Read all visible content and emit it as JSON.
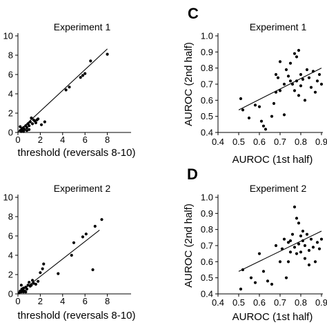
{
  "chart_data": [
    {
      "type": "scatter",
      "panel": "",
      "title": "Experiment 1",
      "xlabel": "threshold (reversals 8-10)",
      "ylabel": "",
      "xlim": [
        0,
        10
      ],
      "ylim": [
        0,
        10
      ],
      "xticks": [
        "0",
        "2",
        "4",
        "6",
        "8"
      ],
      "yticks": [
        "0",
        "2",
        "4",
        "6",
        "8",
        "10"
      ],
      "fit_line": {
        "x": [
          0.0,
          8.0
        ],
        "y": [
          0.05,
          8.65
        ]
      },
      "points": [
        {
          "x": 0.2,
          "y": 0.2
        },
        {
          "x": 0.3,
          "y": 0.1
        },
        {
          "x": 0.35,
          "y": 0.4
        },
        {
          "x": 0.4,
          "y": 0.2
        },
        {
          "x": 0.5,
          "y": 0.5
        },
        {
          "x": 0.6,
          "y": 0.3
        },
        {
          "x": 0.7,
          "y": 0.7
        },
        {
          "x": 0.8,
          "y": 0.5
        },
        {
          "x": 0.9,
          "y": 0.9
        },
        {
          "x": 1.0,
          "y": 0.7
        },
        {
          "x": 1.1,
          "y": 1.1
        },
        {
          "x": 1.2,
          "y": 1.5
        },
        {
          "x": 1.3,
          "y": 0.9
        },
        {
          "x": 1.4,
          "y": 1.3
        },
        {
          "x": 1.5,
          "y": 1.2
        },
        {
          "x": 1.6,
          "y": 1.0
        },
        {
          "x": 1.7,
          "y": 1.3
        },
        {
          "x": 1.8,
          "y": 1.4
        },
        {
          "x": 2.1,
          "y": 0.8
        },
        {
          "x": 2.4,
          "y": 1.1
        },
        {
          "x": 0.5,
          "y": 0.1
        },
        {
          "x": 0.8,
          "y": 0.2
        },
        {
          "x": 1.0,
          "y": 0.3
        },
        {
          "x": 0.2,
          "y": 0.6
        },
        {
          "x": 4.3,
          "y": 4.4
        },
        {
          "x": 4.6,
          "y": 4.7
        },
        {
          "x": 5.6,
          "y": 5.7
        },
        {
          "x": 5.8,
          "y": 5.9
        },
        {
          "x": 6.0,
          "y": 6.1
        },
        {
          "x": 6.5,
          "y": 7.4
        },
        {
          "x": 8.0,
          "y": 8.1
        }
      ]
    },
    {
      "type": "scatter",
      "panel": "C",
      "title": "Experiment 1",
      "xlabel": "AUROC (1st half)",
      "ylabel": "AUROC (2nd half)",
      "xlim": [
        0.4,
        0.9
      ],
      "ylim": [
        0.4,
        1.0
      ],
      "xticks": [
        "0.4",
        "0.5",
        "0.6",
        "0.7",
        "0.8",
        "0.9"
      ],
      "yticks": [
        "0.4",
        "0.5",
        "0.6",
        "0.7",
        "0.8",
        "0.9",
        "1.0"
      ],
      "fit_line": {
        "x": [
          0.5,
          0.9
        ],
        "y": [
          0.54,
          0.8
        ]
      },
      "points": [
        {
          "x": 0.51,
          "y": 0.61
        },
        {
          "x": 0.52,
          "y": 0.54
        },
        {
          "x": 0.55,
          "y": 0.49
        },
        {
          "x": 0.58,
          "y": 0.57
        },
        {
          "x": 0.6,
          "y": 0.56
        },
        {
          "x": 0.61,
          "y": 0.47
        },
        {
          "x": 0.62,
          "y": 0.44
        },
        {
          "x": 0.63,
          "y": 0.42
        },
        {
          "x": 0.66,
          "y": 0.5
        },
        {
          "x": 0.67,
          "y": 0.58
        },
        {
          "x": 0.68,
          "y": 0.65
        },
        {
          "x": 0.69,
          "y": 0.74
        },
        {
          "x": 0.7,
          "y": 0.66
        },
        {
          "x": 0.7,
          "y": 0.84
        },
        {
          "x": 0.72,
          "y": 0.51
        },
        {
          "x": 0.73,
          "y": 0.79
        },
        {
          "x": 0.74,
          "y": 0.75
        },
        {
          "x": 0.75,
          "y": 0.83
        },
        {
          "x": 0.76,
          "y": 0.7
        },
        {
          "x": 0.77,
          "y": 0.89
        },
        {
          "x": 0.77,
          "y": 0.66
        },
        {
          "x": 0.78,
          "y": 0.87
        },
        {
          "x": 0.78,
          "y": 0.72
        },
        {
          "x": 0.79,
          "y": 0.91
        },
        {
          "x": 0.79,
          "y": 0.63
        },
        {
          "x": 0.8,
          "y": 0.76
        },
        {
          "x": 0.8,
          "y": 0.69
        },
        {
          "x": 0.81,
          "y": 0.73
        },
        {
          "x": 0.82,
          "y": 0.6
        },
        {
          "x": 0.83,
          "y": 0.79
        },
        {
          "x": 0.84,
          "y": 0.74
        },
        {
          "x": 0.85,
          "y": 0.68
        },
        {
          "x": 0.86,
          "y": 0.78
        },
        {
          "x": 0.87,
          "y": 0.65
        },
        {
          "x": 0.88,
          "y": 0.72
        },
        {
          "x": 0.89,
          "y": 0.76
        },
        {
          "x": 0.9,
          "y": 0.7
        },
        {
          "x": 0.75,
          "y": 0.72
        },
        {
          "x": 0.72,
          "y": 0.7
        },
        {
          "x": 0.68,
          "y": 0.76
        }
      ]
    },
    {
      "type": "scatter",
      "panel": "",
      "title": "Experiment 2",
      "xlabel": "threshold (reversals 8-10)",
      "ylabel": "",
      "xlim": [
        0,
        10
      ],
      "ylim": [
        0,
        10
      ],
      "xticks": [
        "0",
        "2",
        "4",
        "6",
        "8"
      ],
      "yticks": [
        "0",
        "2",
        "4",
        "6",
        "8",
        "10"
      ],
      "fit_line": {
        "x": [
          0.0,
          7.3
        ],
        "y": [
          0.0,
          6.6
        ]
      },
      "points": [
        {
          "x": 0.1,
          "y": 0.1
        },
        {
          "x": 0.2,
          "y": 0.3
        },
        {
          "x": 0.3,
          "y": 0.2
        },
        {
          "x": 0.35,
          "y": 0.5
        },
        {
          "x": 0.4,
          "y": 0.4
        },
        {
          "x": 0.5,
          "y": 0.6
        },
        {
          "x": 0.6,
          "y": 0.3
        },
        {
          "x": 0.7,
          "y": 0.7
        },
        {
          "x": 0.8,
          "y": 0.5
        },
        {
          "x": 0.9,
          "y": 0.9
        },
        {
          "x": 1.0,
          "y": 1.2
        },
        {
          "x": 1.1,
          "y": 0.8
        },
        {
          "x": 1.2,
          "y": 0.9
        },
        {
          "x": 1.3,
          "y": 1.4
        },
        {
          "x": 1.4,
          "y": 1.1
        },
        {
          "x": 1.6,
          "y": 1.0
        },
        {
          "x": 1.8,
          "y": 1.3
        },
        {
          "x": 2.0,
          "y": 2.2
        },
        {
          "x": 2.2,
          "y": 2.6
        },
        {
          "x": 2.3,
          "y": 3.1
        },
        {
          "x": 3.6,
          "y": 2.1
        },
        {
          "x": 0.5,
          "y": 0.2
        },
        {
          "x": 0.3,
          "y": 0.9
        },
        {
          "x": 0.7,
          "y": 0.2
        },
        {
          "x": 4.8,
          "y": 4.0
        },
        {
          "x": 5.0,
          "y": 5.3
        },
        {
          "x": 5.8,
          "y": 5.9
        },
        {
          "x": 6.1,
          "y": 6.2
        },
        {
          "x": 6.7,
          "y": 2.5
        },
        {
          "x": 6.9,
          "y": 7.0
        },
        {
          "x": 7.5,
          "y": 7.7
        }
      ]
    },
    {
      "type": "scatter",
      "panel": "D",
      "title": "Experiment 2",
      "xlabel": "AUROC (1st half)",
      "ylabel": "AUROC (2nd half)",
      "xlim": [
        0.4,
        0.9
      ],
      "ylim": [
        0.4,
        1.0
      ],
      "xticks": [
        "0.4",
        "0.5",
        "0.6",
        "0.7",
        "0.8",
        "0.9"
      ],
      "yticks": [
        "0.4",
        "0.5",
        "0.6",
        "0.7",
        "0.8",
        "0.9",
        "1.0"
      ],
      "fit_line": {
        "x": [
          0.5,
          0.9
        ],
        "y": [
          0.54,
          0.79
        ]
      },
      "points": [
        {
          "x": 0.51,
          "y": 0.43
        },
        {
          "x": 0.52,
          "y": 0.55
        },
        {
          "x": 0.56,
          "y": 0.5
        },
        {
          "x": 0.58,
          "y": 0.47
        },
        {
          "x": 0.6,
          "y": 0.65
        },
        {
          "x": 0.62,
          "y": 0.54
        },
        {
          "x": 0.64,
          "y": 0.48
        },
        {
          "x": 0.66,
          "y": 0.46
        },
        {
          "x": 0.68,
          "y": 0.7
        },
        {
          "x": 0.7,
          "y": 0.6
        },
        {
          "x": 0.71,
          "y": 0.68
        },
        {
          "x": 0.72,
          "y": 0.74
        },
        {
          "x": 0.73,
          "y": 0.5
        },
        {
          "x": 0.74,
          "y": 0.72
        },
        {
          "x": 0.75,
          "y": 0.66
        },
        {
          "x": 0.76,
          "y": 0.77
        },
        {
          "x": 0.77,
          "y": 0.69
        },
        {
          "x": 0.77,
          "y": 0.94
        },
        {
          "x": 0.78,
          "y": 0.65
        },
        {
          "x": 0.78,
          "y": 0.87
        },
        {
          "x": 0.79,
          "y": 0.71
        },
        {
          "x": 0.8,
          "y": 0.76
        },
        {
          "x": 0.8,
          "y": 0.66
        },
        {
          "x": 0.81,
          "y": 0.73
        },
        {
          "x": 0.82,
          "y": 0.62
        },
        {
          "x": 0.82,
          "y": 0.7
        },
        {
          "x": 0.83,
          "y": 0.77
        },
        {
          "x": 0.84,
          "y": 0.67
        },
        {
          "x": 0.85,
          "y": 0.74
        },
        {
          "x": 0.86,
          "y": 0.69
        },
        {
          "x": 0.87,
          "y": 0.6
        },
        {
          "x": 0.88,
          "y": 0.72
        },
        {
          "x": 0.89,
          "y": 0.68
        },
        {
          "x": 0.9,
          "y": 0.74
        },
        {
          "x": 0.79,
          "y": 0.84
        },
        {
          "x": 0.74,
          "y": 0.6
        },
        {
          "x": 0.84,
          "y": 0.58
        },
        {
          "x": 0.81,
          "y": 0.79
        },
        {
          "x": 0.75,
          "y": 0.73
        }
      ]
    }
  ]
}
